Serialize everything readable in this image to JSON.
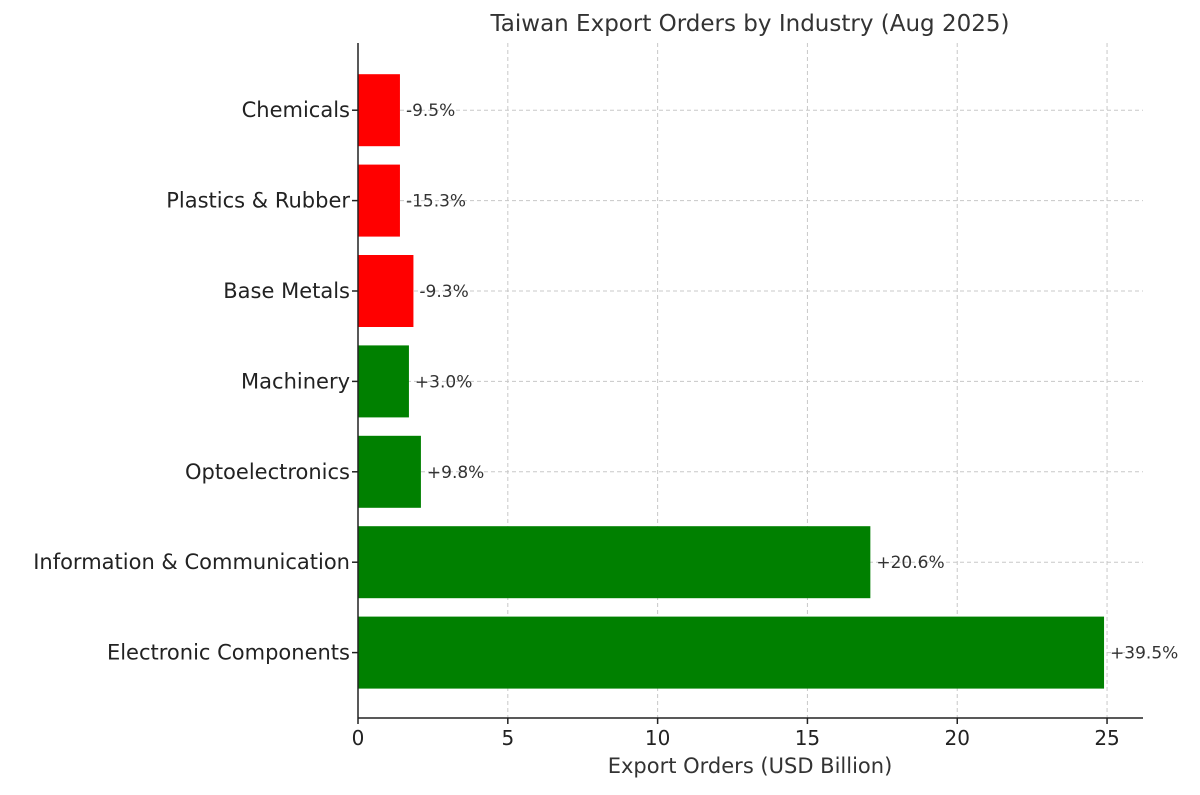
{
  "chart_data": {
    "type": "bar",
    "orientation": "horizontal",
    "title": "Taiwan Export Orders by Industry (Aug 2025)",
    "xlabel": "Export Orders (USD Billion)",
    "ylabel": "",
    "xlim": [
      0,
      26.2
    ],
    "xticks": [
      0,
      5,
      10,
      15,
      20,
      25
    ],
    "grid": true,
    "categories": [
      "Electronic Components",
      "Information & Communication",
      "Optoelectronics",
      "Machinery",
      "Base Metals",
      "Plastics & Rubber",
      "Chemicals"
    ],
    "values": [
      24.9,
      17.1,
      2.1,
      1.7,
      1.85,
      1.4,
      1.4
    ],
    "yoy_change_labels": [
      "+39.5%",
      "+20.6%",
      "+9.8%",
      "+3.0%",
      "-9.3%",
      "-15.3%",
      "-9.5%"
    ],
    "colors": [
      "#008000",
      "#008000",
      "#008000",
      "#008000",
      "#ff0000",
      "#ff0000",
      "#ff0000"
    ]
  }
}
